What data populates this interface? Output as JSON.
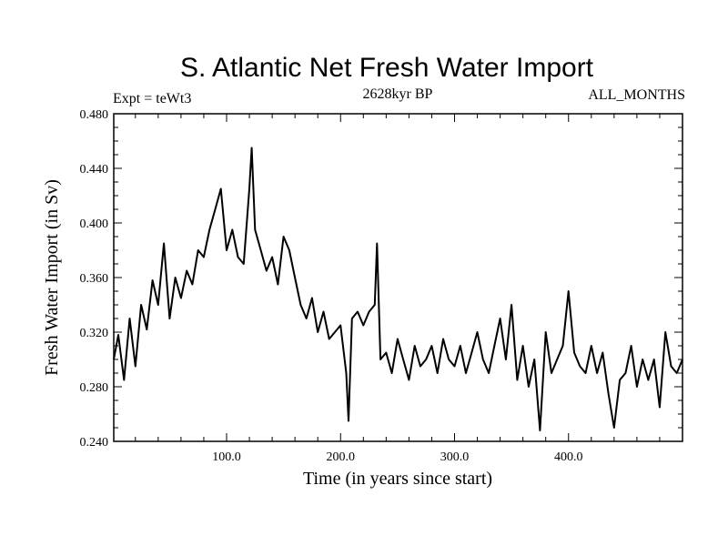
{
  "chart_data": {
    "type": "line",
    "title": "S. Atlantic Net Fresh Water Import",
    "subtitle_left": "Expt = teWt3",
    "subtitle_center": "2628kyr BP",
    "subtitle_right": "ALL_MONTHS",
    "xlabel": "Time (in years since start)",
    "ylabel": "Fresh Water Import (in Sv)",
    "xlim": [
      1,
      500
    ],
    "ylim": [
      0.24,
      0.48
    ],
    "x_ticks": [
      100,
      200,
      300,
      400
    ],
    "x_tick_labels": [
      "100.0",
      "200.0",
      "300.0",
      "400.0"
    ],
    "y_ticks": [
      0.24,
      0.28,
      0.32,
      0.36,
      0.4,
      0.44,
      0.48
    ],
    "y_tick_labels": [
      "0.240",
      "0.280",
      "0.320",
      "0.360",
      "0.400",
      "0.440",
      "0.480"
    ],
    "series": [
      {
        "name": "fresh water import",
        "color": "#000000",
        "x": [
          1,
          5,
          10,
          15,
          20,
          25,
          30,
          35,
          40,
          45,
          50,
          55,
          60,
          65,
          70,
          75,
          80,
          85,
          90,
          95,
          100,
          105,
          110,
          115,
          120,
          122,
          125,
          130,
          135,
          140,
          145,
          150,
          155,
          160,
          165,
          170,
          175,
          180,
          185,
          190,
          195,
          200,
          205,
          207,
          210,
          215,
          220,
          225,
          230,
          232,
          235,
          240,
          245,
          250,
          255,
          260,
          265,
          270,
          275,
          280,
          285,
          290,
          295,
          300,
          305,
          310,
          315,
          320,
          325,
          330,
          335,
          340,
          345,
          350,
          355,
          360,
          365,
          370,
          375,
          380,
          385,
          390,
          395,
          400,
          405,
          410,
          415,
          420,
          425,
          430,
          435,
          440,
          445,
          450,
          455,
          460,
          465,
          470,
          475,
          480,
          485,
          490,
          495,
          500
        ],
        "values": [
          0.3,
          0.318,
          0.285,
          0.33,
          0.295,
          0.34,
          0.322,
          0.358,
          0.34,
          0.385,
          0.33,
          0.36,
          0.345,
          0.365,
          0.355,
          0.38,
          0.375,
          0.395,
          0.41,
          0.425,
          0.38,
          0.395,
          0.375,
          0.37,
          0.425,
          0.455,
          0.395,
          0.38,
          0.365,
          0.375,
          0.355,
          0.39,
          0.38,
          0.36,
          0.34,
          0.33,
          0.345,
          0.32,
          0.335,
          0.315,
          0.32,
          0.325,
          0.29,
          0.255,
          0.33,
          0.335,
          0.325,
          0.335,
          0.34,
          0.385,
          0.3,
          0.305,
          0.29,
          0.315,
          0.3,
          0.285,
          0.31,
          0.295,
          0.3,
          0.31,
          0.29,
          0.315,
          0.3,
          0.295,
          0.31,
          0.29,
          0.305,
          0.32,
          0.3,
          0.29,
          0.31,
          0.33,
          0.3,
          0.34,
          0.285,
          0.31,
          0.28,
          0.3,
          0.248,
          0.32,
          0.29,
          0.3,
          0.31,
          0.35,
          0.305,
          0.295,
          0.29,
          0.31,
          0.29,
          0.305,
          0.275,
          0.25,
          0.285,
          0.29,
          0.31,
          0.28,
          0.3,
          0.285,
          0.3,
          0.265,
          0.32,
          0.295,
          0.29,
          0.3
        ]
      }
    ]
  }
}
